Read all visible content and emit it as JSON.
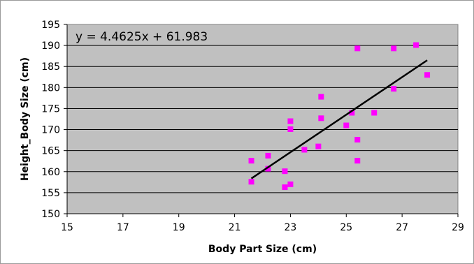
{
  "chart_data": {
    "type": "scatter",
    "title": "",
    "xlabel": "Body Part Size (cm)",
    "ylabel": "Height_Body Size (cm)",
    "xlim": [
      15,
      29
    ],
    "ylim": [
      150,
      195
    ],
    "xticks": [
      15,
      17,
      19,
      21,
      23,
      25,
      27,
      29
    ],
    "yticks": [
      150,
      155,
      160,
      165,
      170,
      175,
      180,
      185,
      190,
      195
    ],
    "xtick_labels": [
      "15",
      "17",
      "19",
      "21",
      "23",
      "25",
      "27",
      "29"
    ],
    "ytick_labels": [
      "150",
      "155",
      "160",
      "165",
      "170",
      "175",
      "180",
      "185",
      "190",
      "195"
    ],
    "grid": "horizontal",
    "legend": "none",
    "series": [
      {
        "marker": "square",
        "color": "#ff00ff",
        "points": [
          {
            "x": 21.6,
            "y": 162.6
          },
          {
            "x": 21.6,
            "y": 157.6
          },
          {
            "x": 22.2,
            "y": 163.8
          },
          {
            "x": 22.2,
            "y": 160.7
          },
          {
            "x": 22.8,
            "y": 160.1
          },
          {
            "x": 22.8,
            "y": 156.3
          },
          {
            "x": 23.0,
            "y": 157.0
          },
          {
            "x": 23.0,
            "y": 172.0
          },
          {
            "x": 23.0,
            "y": 170.1
          },
          {
            "x": 23.5,
            "y": 165.2
          },
          {
            "x": 24.0,
            "y": 166.0
          },
          {
            "x": 24.1,
            "y": 177.8
          },
          {
            "x": 24.1,
            "y": 172.7
          },
          {
            "x": 25.0,
            "y": 171.0
          },
          {
            "x": 25.2,
            "y": 174.0
          },
          {
            "x": 25.4,
            "y": 189.3
          },
          {
            "x": 25.4,
            "y": 167.6
          },
          {
            "x": 25.4,
            "y": 162.6
          },
          {
            "x": 26.0,
            "y": 174.0
          },
          {
            "x": 26.7,
            "y": 189.3
          },
          {
            "x": 26.7,
            "y": 179.7
          },
          {
            "x": 27.5,
            "y": 190.1
          },
          {
            "x": 27.9,
            "y": 183.0
          }
        ]
      }
    ],
    "trendline": {
      "type": "linear",
      "slope": 4.4625,
      "intercept": 61.983,
      "x_range": [
        21.6,
        27.9
      ],
      "color": "#000000",
      "equation_label": "y = 4.4625x + 61.983"
    },
    "plot_background": "#c0c0c0"
  }
}
